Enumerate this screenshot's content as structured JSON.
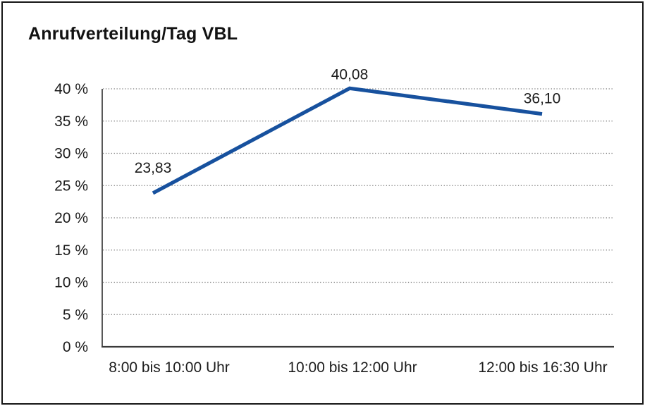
{
  "chart_data": {
    "type": "line",
    "title": "Anrufverteilung/Tag VBL",
    "categories": [
      "8:00 bis 10:00 Uhr",
      "10:00 bis 12:00 Uhr",
      "12:00 bis 16:30 Uhr"
    ],
    "values": [
      23.83,
      40.08,
      36.1
    ],
    "data_labels": [
      "23,83",
      "40,08",
      "36,10"
    ],
    "xlabel": "",
    "ylabel": "",
    "ylim": [
      0,
      40
    ],
    "ytick_step": 5,
    "ytick_labels": [
      "0 %",
      "5 %",
      "10 %",
      "15 %",
      "20 %",
      "25 %",
      "30 %",
      "35 %",
      "40 %"
    ],
    "grid": "horizontal-dotted",
    "legend": "none",
    "line_color": "#17519E"
  }
}
